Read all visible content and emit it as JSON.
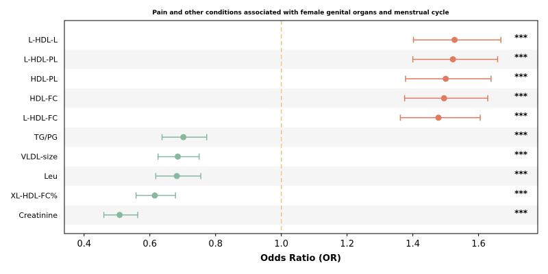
{
  "chart_data": {
    "type": "forest",
    "title": "Pain and other conditions associated with female genital organs and menstrual cycle",
    "xlabel": "Odds Ratio (OR)",
    "ylabel": "",
    "xlim": [
      0.34,
      1.78
    ],
    "xticks": [
      "0.4",
      "0.6",
      "0.8",
      "1.0",
      "1.2",
      "1.4",
      "1.6"
    ],
    "reference_line": 1.0,
    "grid": false,
    "row_banding": true,
    "colors": {
      "increase": "#e07b5f",
      "decrease": "#86b9a0",
      "reference": "#f5c77e",
      "band": "#f5f5f5"
    },
    "rows": [
      {
        "label": "L-HDL-L",
        "or": 1.527,
        "lo": 1.402,
        "hi": 1.668,
        "sig": "***",
        "group": "increase"
      },
      {
        "label": "L-HDL-PL",
        "or": 1.522,
        "lo": 1.4,
        "hi": 1.658,
        "sig": "***",
        "group": "increase"
      },
      {
        "label": "HDL-PL",
        "or": 1.5,
        "lo": 1.378,
        "hi": 1.638,
        "sig": "***",
        "group": "increase"
      },
      {
        "label": "HDL-FC",
        "or": 1.495,
        "lo": 1.375,
        "hi": 1.628,
        "sig": "***",
        "group": "increase"
      },
      {
        "label": "L-HDL-FC",
        "or": 1.478,
        "lo": 1.362,
        "hi": 1.605,
        "sig": "***",
        "group": "increase"
      },
      {
        "label": "TG/PG",
        "or": 0.702,
        "lo": 0.637,
        "hi": 0.773,
        "sig": "***",
        "group": "decrease"
      },
      {
        "label": "VLDL-size",
        "or": 0.685,
        "lo": 0.625,
        "hi": 0.75,
        "sig": "***",
        "group": "decrease"
      },
      {
        "label": "Leu",
        "or": 0.682,
        "lo": 0.618,
        "hi": 0.755,
        "sig": "***",
        "group": "decrease"
      },
      {
        "label": "XL-HDL-FC%",
        "or": 0.615,
        "lo": 0.558,
        "hi": 0.678,
        "sig": "***",
        "group": "decrease"
      },
      {
        "label": "Creatinine",
        "or": 0.508,
        "lo": 0.46,
        "hi": 0.563,
        "sig": "***",
        "group": "decrease"
      }
    ]
  }
}
